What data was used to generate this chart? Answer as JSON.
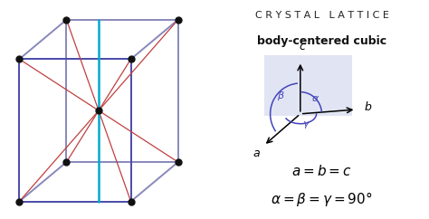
{
  "title": "CRYSTAL LATTICE",
  "subtitle": "body-centered cubic",
  "eq1": "$a = b = c$",
  "eq2": "$\\alpha = \\beta = \\gamma = 90°$",
  "bg_color": "#ffffff",
  "cube_front_color": "#4a4aaa",
  "cube_back_color": "#8888bb",
  "body_diag_color": "#c04040",
  "vertical_line_color": "#00aacc",
  "atom_color": "#111111",
  "arc_color": "#4444bb"
}
